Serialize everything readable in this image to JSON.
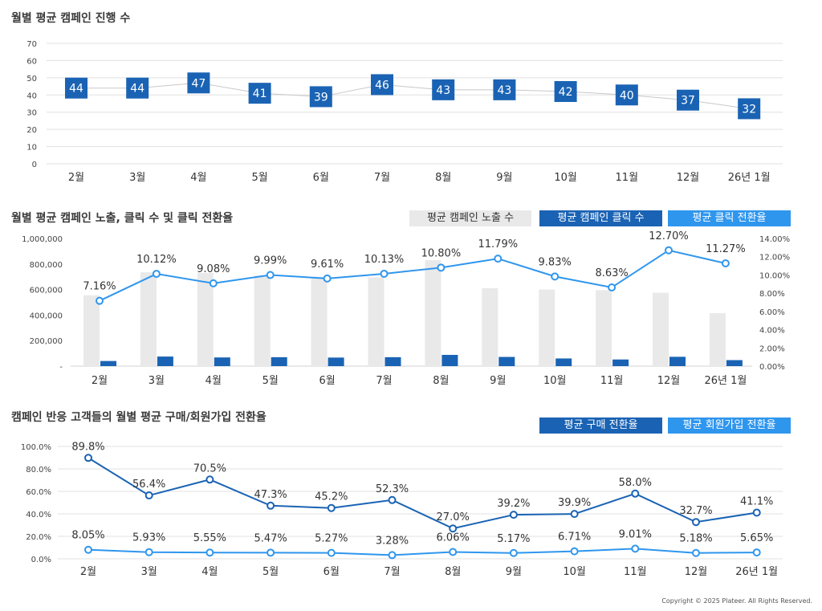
{
  "copyright": "Copyright © 2025 Plateer. All Rights Reserved.",
  "chart_data": [
    {
      "type": "line",
      "title": "월별 평균 캠페인 진행 수",
      "categories": [
        "2월",
        "3월",
        "4월",
        "5월",
        "6월",
        "7월",
        "8월",
        "9월",
        "10월",
        "11월",
        "12월",
        "26년 1월"
      ],
      "values": [
        44,
        44,
        47,
        41,
        39,
        46,
        43,
        43,
        42,
        40,
        37,
        32
      ],
      "ylim": [
        0,
        70
      ],
      "yticks": [
        "0",
        "10",
        "20",
        "30",
        "40",
        "50",
        "60",
        "70"
      ],
      "colors": {
        "marker": "#1a63b4",
        "line": "#c8c8c8"
      }
    },
    {
      "type": "bar",
      "title": "월별 평균 캠페인 노출, 클릭 수 및 클릭 전환율",
      "categories": [
        "2월",
        "3월",
        "4월",
        "5월",
        "6월",
        "7월",
        "8월",
        "9월",
        "10월",
        "11월",
        "12월",
        "26년 1월"
      ],
      "series": [
        {
          "name": "평균 캠페인 노출 수",
          "axis": "left",
          "values": [
            555000,
            735000,
            730000,
            710000,
            700000,
            695000,
            830000,
            610000,
            600000,
            595000,
            575000,
            415000
          ]
        },
        {
          "name": "평균 캠페인 클릭 수",
          "axis": "left",
          "values": [
            40000,
            75000,
            68000,
            70000,
            67000,
            70000,
            88000,
            72000,
            60000,
            52000,
            73000,
            47000
          ]
        },
        {
          "name": "평균 클릭 전환율",
          "axis": "right",
          "values": [
            7.16,
            10.12,
            9.08,
            9.99,
            9.61,
            10.13,
            10.8,
            11.79,
            9.83,
            8.63,
            12.7,
            11.27
          ],
          "labels": [
            "7.16%",
            "10.12%",
            "9.08%",
            "9.99%",
            "9.61%",
            "10.13%",
            "10.80%",
            "11.79%",
            "9.83%",
            "8.63%",
            "12.70%",
            "11.27%"
          ]
        }
      ],
      "ylim_left": [
        0,
        1000000
      ],
      "ylim_right": [
        0,
        14
      ],
      "yticks_left": [
        "-",
        "200,000",
        "400,000",
        "600,000",
        "800,000",
        "1,000,000"
      ],
      "yticks_right": [
        "0.00%",
        "2.00%",
        "4.00%",
        "6.00%",
        "8.00%",
        "10.00%",
        "12.00%",
        "14.00%"
      ],
      "colors": {
        "impressions": "#e9e9e9",
        "clicks": "#1a63b4",
        "rate": "#2f96ee"
      }
    },
    {
      "type": "line",
      "title": "캠페인 반응 고객들의 월별 평균 구매/회원가입 전환율",
      "categories": [
        "2월",
        "3월",
        "4월",
        "5월",
        "6월",
        "7월",
        "8월",
        "9월",
        "10월",
        "11월",
        "12월",
        "26년 1월"
      ],
      "series": [
        {
          "name": "평균 구매 전환율",
          "values": [
            89.8,
            56.4,
            70.5,
            47.3,
            45.2,
            52.3,
            27.0,
            39.2,
            39.9,
            58.0,
            32.7,
            41.1
          ],
          "labels": [
            "89.8%",
            "56.4%",
            "70.5%",
            "47.3%",
            "45.2%",
            "52.3%",
            "27.0%",
            "39.2%",
            "39.9%",
            "58.0%",
            "32.7%",
            "41.1%"
          ]
        },
        {
          "name": "평균 회원가입 전환율",
          "values": [
            8.05,
            5.93,
            5.55,
            5.47,
            5.27,
            3.28,
            6.06,
            5.17,
            6.71,
            9.01,
            5.18,
            5.65
          ],
          "labels": [
            "8.05%",
            "5.93%",
            "5.55%",
            "5.47%",
            "5.27%",
            "3.28%",
            "6.06%",
            "5.17%",
            "6.71%",
            "9.01%",
            "5.18%",
            "5.65%"
          ]
        }
      ],
      "ylim": [
        0,
        100
      ],
      "yticks": [
        "0.0%",
        "20.0%",
        "40.0%",
        "60.0%",
        "80.0%",
        "100.0%"
      ],
      "colors": {
        "purchase": "#1a63b4",
        "signup": "#2f96ee"
      }
    }
  ]
}
